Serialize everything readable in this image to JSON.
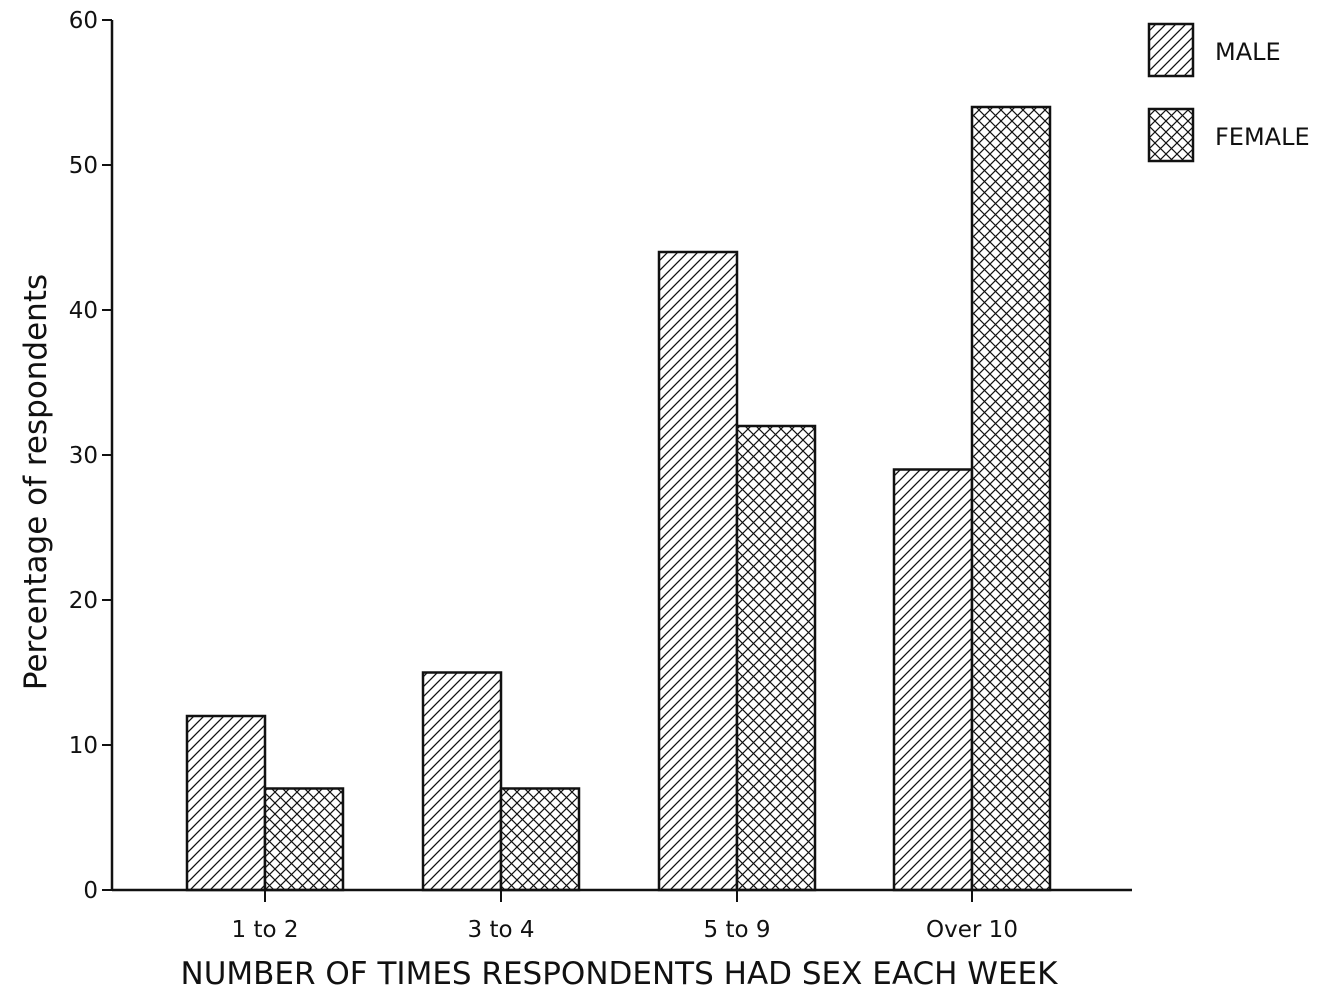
{
  "chart_data": {
    "type": "bar",
    "title": "",
    "xlabel": "NUMBER OF TIMES RESPONDENTS HAD SEX EACH WEEK",
    "ylabel": "Percentage of respondents",
    "categories": [
      "1 to 2",
      "3 to 4",
      "5 to 9",
      "Over 10"
    ],
    "series": [
      {
        "name": "MALE",
        "pattern": "diagonal-hatch",
        "values": [
          12,
          15,
          44,
          29
        ]
      },
      {
        "name": "FEMALE",
        "pattern": "crosshatch",
        "values": [
          7,
          7,
          32,
          54
        ]
      }
    ],
    "ylim": [
      0,
      60
    ],
    "yticks": [
      0,
      10,
      20,
      30,
      40,
      50,
      60
    ],
    "grid": false,
    "legend_position": "top-right"
  }
}
